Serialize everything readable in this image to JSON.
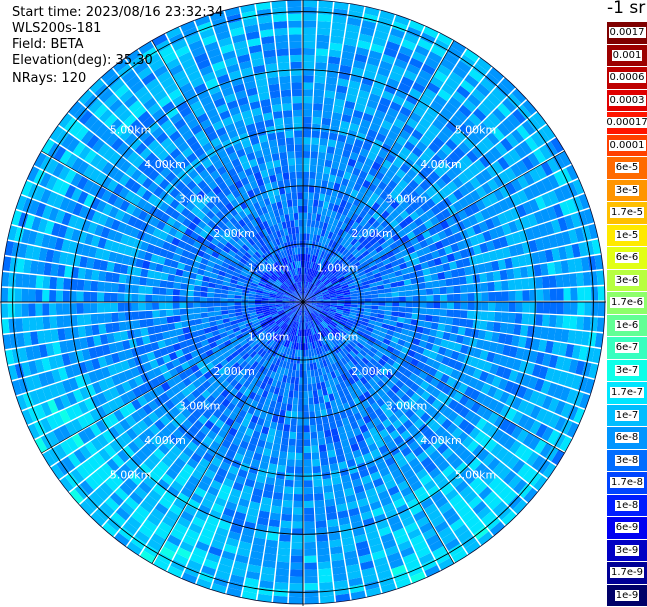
{
  "header": {
    "start_time": "Start time: 2023/08/16 23:32:34",
    "instrument": "WLS200s-181",
    "field": "Field: BETA",
    "elevation": "Elevation(deg): 35.30",
    "nrays": "NRays: 120"
  },
  "unit_label": "-1 sr",
  "legend": {
    "entries": [
      {
        "label": "0.0017",
        "color": "#7f0000"
      },
      {
        "label": "0.001",
        "color": "#9c0000"
      },
      {
        "label": "0.0006",
        "color": "#be0000"
      },
      {
        "label": "0.0003",
        "color": "#e00000"
      },
      {
        "label": "0.00017",
        "color": "#ff1500"
      },
      {
        "label": "0.0001",
        "color": "#ff4000"
      },
      {
        "label": "6e-5",
        "color": "#ff6a00"
      },
      {
        "label": "3e-5",
        "color": "#ff9500"
      },
      {
        "label": "1.7e-5",
        "color": "#ffbf00"
      },
      {
        "label": "1e-5",
        "color": "#ffe900"
      },
      {
        "label": "6e-6",
        "color": "#e2ff15"
      },
      {
        "label": "3e-6",
        "color": "#b7ff40"
      },
      {
        "label": "1.7e-6",
        "color": "#8dff6a"
      },
      {
        "label": "1e-6",
        "color": "#62ff95"
      },
      {
        "label": "6e-7",
        "color": "#38ffbf"
      },
      {
        "label": "3e-7",
        "color": "#0dffe9"
      },
      {
        "label": "1.7e-7",
        "color": "#00e5ff"
      },
      {
        "label": "1e-7",
        "color": "#00bdff"
      },
      {
        "label": "6e-8",
        "color": "#0095ff"
      },
      {
        "label": "3e-8",
        "color": "#006dff"
      },
      {
        "label": "1.7e-8",
        "color": "#0045ff"
      },
      {
        "label": "1e-8",
        "color": "#001dff"
      },
      {
        "label": "6e-9",
        "color": "#0000f1"
      },
      {
        "label": "3e-9",
        "color": "#0000c4"
      },
      {
        "label": "1.7e-9",
        "color": "#000096"
      },
      {
        "label": "1e-9",
        "color": "#000068"
      }
    ]
  },
  "chart_data": {
    "type": "heatmap",
    "projection": "polar PPI",
    "field": "BETA",
    "elevation_deg": 35.3,
    "n_rays": 120,
    "range_rings_km": [
      1,
      2,
      3,
      4,
      5
    ],
    "ring_labels": [
      "1.00km",
      "2.00km",
      "3.00km",
      "4.00km",
      "5.00km"
    ],
    "max_range_km": 5.2,
    "spoke_angles_deg": [
      0,
      30,
      60,
      90,
      120,
      150,
      180,
      210,
      240,
      270,
      300,
      330
    ],
    "dominant_range_by_distance": [
      {
        "range_km": 1.0,
        "typical_value": "3e-8"
      },
      {
        "range_km": 2.0,
        "typical_value": "6e-8"
      },
      {
        "range_km": 3.0,
        "typical_value": "6e-8"
      },
      {
        "range_km": 4.0,
        "typical_value": "1e-7"
      },
      {
        "range_km": 5.0,
        "typical_value": "1e-7"
      }
    ],
    "color_scale": "log, 1e-9 to 0.0017"
  }
}
